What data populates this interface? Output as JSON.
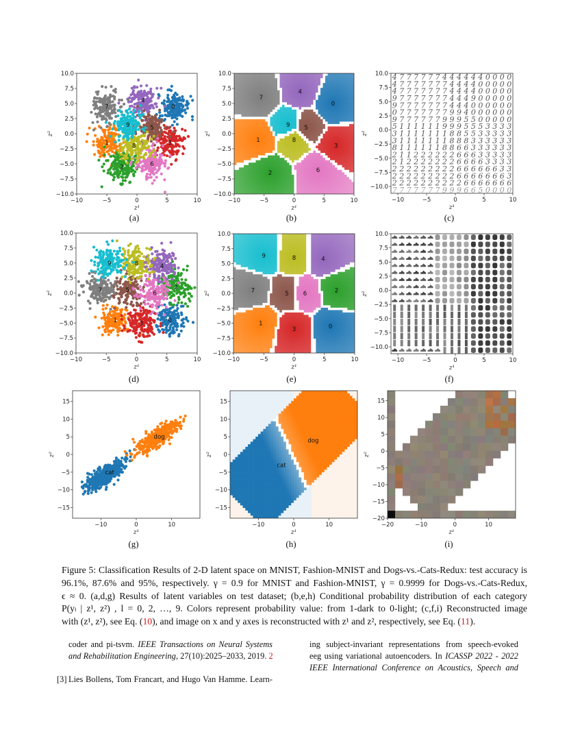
{
  "chart_data": [
    {
      "label": "(a)",
      "type": "scatter",
      "xlabel": "z¹",
      "ylabel": "z²",
      "xlim": [
        -10,
        10
      ],
      "ylim": [
        -10,
        10
      ],
      "xticks": [
        -10,
        -5,
        0,
        5,
        10
      ],
      "yticks": [
        -10,
        -7.5,
        -5,
        -2.5,
        0,
        2.5,
        5,
        7.5,
        10
      ],
      "clusters": [
        {
          "name": "0",
          "center": [
            6,
            4.5
          ],
          "color": "#1f77b4"
        },
        {
          "name": "1",
          "center": [
            -5,
            -1.5
          ],
          "color": "#ff7f0e"
        },
        {
          "name": "2",
          "center": [
            -2.5,
            -5.5
          ],
          "color": "#2ca02c"
        },
        {
          "name": "3",
          "center": [
            5.5,
            -1.5
          ],
          "color": "#d62728"
        },
        {
          "name": "4",
          "center": [
            1,
            5.5
          ],
          "color": "#9467bd"
        },
        {
          "name": "5",
          "center": [
            2.5,
            1
          ],
          "color": "#8c564b"
        },
        {
          "name": "6",
          "center": [
            2.5,
            -5
          ],
          "color": "#e377c2"
        },
        {
          "name": "7",
          "center": [
            -5,
            4.5
          ],
          "color": "#7f7f7f"
        },
        {
          "name": "8",
          "center": [
            -0.5,
            -2
          ],
          "color": "#bcbd22"
        },
        {
          "name": "9",
          "center": [
            -1.5,
            1.5
          ],
          "color": "#17becf"
        }
      ]
    },
    {
      "label": "(b)",
      "type": "region",
      "xlabel": "z¹",
      "ylabel": "z²",
      "xlim": [
        -10,
        10
      ],
      "ylim": [
        -10,
        10
      ],
      "xticks": [
        -10,
        -5,
        0,
        5,
        10
      ],
      "yticks": [
        -10,
        -7.5,
        -5,
        -2.5,
        0,
        2.5,
        5,
        7.5,
        10
      ],
      "clusters": [
        {
          "name": "0",
          "center": [
            6.5,
            5
          ],
          "color": "#1f77b4"
        },
        {
          "name": "1",
          "center": [
            -6,
            -1
          ],
          "color": "#ff7f0e"
        },
        {
          "name": "2",
          "center": [
            -4,
            -6.5
          ],
          "color": "#2ca02c"
        },
        {
          "name": "3",
          "center": [
            7,
            -2
          ],
          "color": "#d62728"
        },
        {
          "name": "4",
          "center": [
            1,
            7
          ],
          "color": "#9467bd"
        },
        {
          "name": "5",
          "center": [
            2,
            1
          ],
          "color": "#8c564b"
        },
        {
          "name": "6",
          "center": [
            4,
            -6
          ],
          "color": "#e377c2"
        },
        {
          "name": "7",
          "center": [
            -5.5,
            6
          ],
          "color": "#7f7f7f"
        },
        {
          "name": "8",
          "center": [
            0,
            -1
          ],
          "color": "#bcbd22"
        },
        {
          "name": "9",
          "center": [
            -1,
            1.5
          ],
          "color": "#17becf"
        }
      ]
    },
    {
      "label": "(c)",
      "type": "digit-grid",
      "xlabel": "z¹",
      "ylabel": "z²",
      "xlim": [
        -11.2,
        10
      ],
      "ylim": [
        -11.2,
        10
      ],
      "xticks": [
        -10,
        -5,
        0,
        5,
        10
      ],
      "yticks": [
        -10,
        -7.5,
        -5,
        -2.5,
        0,
        2.5,
        5,
        7.5,
        10
      ],
      "rows": [
        "47777774444440000",
        "47777777444400000",
        "47777777444400000",
        "97777777444900000",
        "97777777444000000",
        "07777777994000000",
        "97777779995500000",
        "51111119995553333",
        "31111111885533333",
        "31111111888333333",
        "81111118866333333",
        "21122222266633333",
        "21222222266663333",
        "22222222266666633",
        "22222222266666663",
        "22222222226666666",
        "77777779996650000"
      ]
    },
    {
      "label": "(d)",
      "type": "scatter",
      "xlabel": "z¹",
      "ylabel": "z²",
      "xlim": [
        -10,
        10
      ],
      "ylim": [
        -10,
        10
      ],
      "xticks": [
        -10,
        -5,
        0,
        5,
        10
      ],
      "yticks": [
        -10,
        -7.5,
        -5,
        -2.5,
        0,
        2.5,
        5,
        7.5,
        10
      ],
      "clusters": [
        {
          "name": "0",
          "center": [
            5.5,
            -4.5
          ],
          "color": "#1f77b4"
        },
        {
          "name": "1",
          "center": [
            -3.5,
            -4.5
          ],
          "color": "#ff7f0e"
        },
        {
          "name": "2",
          "center": [
            6.5,
            1
          ],
          "color": "#2ca02c"
        },
        {
          "name": "3",
          "center": [
            0.8,
            -5
          ],
          "color": "#d62728"
        },
        {
          "name": "4",
          "center": [
            4.2,
            4.5
          ],
          "color": "#9467bd"
        },
        {
          "name": "5",
          "center": [
            -1.5,
            0.5
          ],
          "color": "#8c564b"
        },
        {
          "name": "6",
          "center": [
            3,
            0
          ],
          "color": "#e377c2"
        },
        {
          "name": "7",
          "center": [
            -6,
            0.5
          ],
          "color": "#7f7f7f"
        },
        {
          "name": "8",
          "center": [
            0,
            5
          ],
          "color": "#bcbd22"
        },
        {
          "name": "9",
          "center": [
            -4.5,
            5
          ],
          "color": "#17becf"
        }
      ]
    },
    {
      "label": "(e)",
      "type": "region",
      "xlabel": "z¹",
      "ylabel": "z²",
      "xlim": [
        -10,
        10
      ],
      "ylim": [
        -10,
        10
      ],
      "xticks": [
        -10,
        -5,
        0,
        5,
        10
      ],
      "yticks": [
        -10,
        -7.5,
        -5,
        -2.5,
        0,
        2.5,
        5,
        7.5,
        10
      ],
      "clusters": [
        {
          "name": "0",
          "center": [
            6,
            -5.5
          ],
          "color": "#1f77b4"
        },
        {
          "name": "1",
          "center": [
            -5.5,
            -5
          ],
          "color": "#ff7f0e"
        },
        {
          "name": "2",
          "center": [
            7,
            0.5
          ],
          "color": "#2ca02c"
        },
        {
          "name": "3",
          "center": [
            0,
            -6
          ],
          "color": "#d62728"
        },
        {
          "name": "4",
          "center": [
            4.8,
            5.8
          ],
          "color": "#9467bd"
        },
        {
          "name": "5",
          "center": [
            -1.2,
            0
          ],
          "color": "#8c564b"
        },
        {
          "name": "6",
          "center": [
            1.8,
            0
          ],
          "color": "#e377c2"
        },
        {
          "name": "7",
          "center": [
            -6.8,
            0.5
          ],
          "color": "#7f7f7f"
        },
        {
          "name": "8",
          "center": [
            0,
            6
          ],
          "color": "#bcbd22"
        },
        {
          "name": "9",
          "center": [
            -5,
            6.3
          ],
          "color": "#17becf"
        }
      ]
    },
    {
      "label": "(f)",
      "type": "fashion-grid",
      "xlabel": "z¹",
      "ylabel": "z²",
      "xlim": [
        -11.2,
        10
      ],
      "ylim": [
        -11.2,
        10
      ],
      "xticks": [
        -10,
        -5,
        0,
        5,
        10
      ],
      "yticks": [
        -10,
        -7.5,
        -5,
        -2.5,
        0,
        2.5,
        5,
        7.5,
        10
      ]
    },
    {
      "label": "(g)",
      "type": "scatter",
      "xlabel": "z¹",
      "ylabel": "z²",
      "xlim": [
        -18,
        18
      ],
      "ylim": [
        -18,
        18
      ],
      "xticks": [
        -10,
        0,
        10
      ],
      "yticks": [
        -15,
        -10,
        -5,
        0,
        5,
        10,
        15
      ],
      "clusters": [
        {
          "name": "cat",
          "center": [
            -9,
            -6
          ],
          "color": "#1f77b4",
          "elongated": true
        },
        {
          "name": "dog",
          "center": [
            6,
            5
          ],
          "color": "#ff7f0e",
          "elongated": true
        }
      ],
      "label_positions": {
        "cat": [
          -7.5,
          -5
        ],
        "dog": [
          6.5,
          5
        ]
      }
    },
    {
      "label": "(h)",
      "type": "binary-region",
      "xlabel": "z¹",
      "ylabel": "z²",
      "xlim": [
        -18,
        18
      ],
      "ylim": [
        -18,
        18
      ],
      "xticks": [
        -10,
        0,
        10
      ],
      "yticks": [
        -15,
        -10,
        -5,
        0,
        5,
        10,
        15
      ],
      "classes": [
        {
          "name": "cat",
          "color": "#1f77b4",
          "label_at": [
            -3.5,
            -3
          ]
        },
        {
          "name": "dog",
          "color": "#ff7f0e",
          "label_at": [
            5.5,
            4
          ]
        }
      ]
    },
    {
      "label": "(i)",
      "type": "image-grid",
      "xlabel": "z¹",
      "ylabel": "z²",
      "xlim": [
        -20,
        18
      ],
      "ylim": [
        -20,
        18
      ],
      "xticks": [
        -20,
        -10,
        0,
        10
      ],
      "yticks": [
        -20,
        -15,
        -10,
        -5,
        0,
        5,
        10,
        15
      ]
    }
  ],
  "caption": {
    "lines": [
      "Figure 5: Classification Results of 2-D latent space on MNIST, Fashion-MNIST and Dogs-vs.-Cats-Redux: test accuracy is",
      "96.1%, 87.6% and 95%, respectively.  γ = 0.9 for MNIST and Fashion-MNIST, γ = 0.9999 for Dogs-vs.-Cats-Redux,",
      "ϵ ≈ 0.  (a,d,g) Results of latent variables on test dataset; (b,e,h) Conditional probability distribution of each category",
      "P(yₗ | z¹, z²) , l = 0, 2, …, 9.  Colors represent probability value: from 1-dark to 0-light; (c,f,i) Reconstructed image"
    ],
    "last_a": "with (z¹, z²), see Eq. (",
    "ref_eq10": "10",
    "last_b": "), and image on x and y axes is reconstructed with z¹ and z², respectively, see Eq. (",
    "ref_eq11": "11",
    "last_c": ")."
  },
  "references": {
    "left": {
      "line1_a": "coder and pi-tsvm.  ",
      "line1_b": "IEEE Transactions on Neural Systems",
      "line2_a": "and Rehabilitation Engineering",
      "line2_b": ", 27(10):2025–2033, 2019. ",
      "line2_ref": "2",
      "ref3_num": "[3]",
      "ref3_line1": "Lies Bollens, Tom Francart, and Hugo Van Hamme.  Learn-"
    },
    "right": {
      "line1": "ing subject-invariant representations from speech-evoked",
      "line2_a": "eeg using variational autoencoders.  In ",
      "line2_b": "ICASSP 2022 - 2022",
      "line3": "IEEE International Conference on Acoustics, Speech and"
    }
  }
}
